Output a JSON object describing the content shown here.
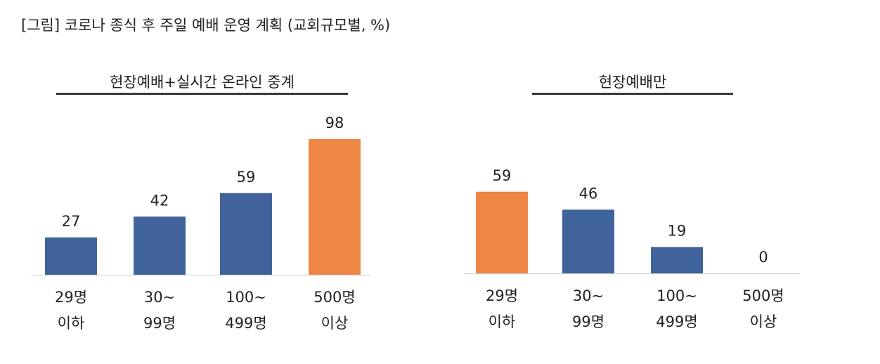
{
  "figure_title": "[그림] 코로나 종식 후 주일 예배 운영 계획 (교회규모별, %)",
  "colors": {
    "default_bar": "#41639C",
    "highlight_bar": "#EE8746",
    "axis": "#D0D0D0",
    "rule": "#3A3A3A"
  },
  "chart_data": [
    {
      "type": "bar",
      "title": "현장예배+실시간 온라인 중계",
      "categories": [
        [
          "29명",
          "이하"
        ],
        [
          "30~",
          "99명"
        ],
        [
          "100~",
          "499명"
        ],
        [
          "500명",
          "이상"
        ]
      ],
      "values": [
        27,
        42,
        59,
        98
      ],
      "highlight_index": 3,
      "ylim": [
        0,
        100
      ]
    },
    {
      "type": "bar",
      "title": "현장예배만",
      "categories": [
        [
          "29명",
          "이하"
        ],
        [
          "30~",
          "99명"
        ],
        [
          "100~",
          "499명"
        ],
        [
          "500명",
          "이상"
        ]
      ],
      "values": [
        59,
        46,
        19,
        0
      ],
      "highlight_index": 0,
      "ylim": [
        0,
        100
      ]
    }
  ]
}
